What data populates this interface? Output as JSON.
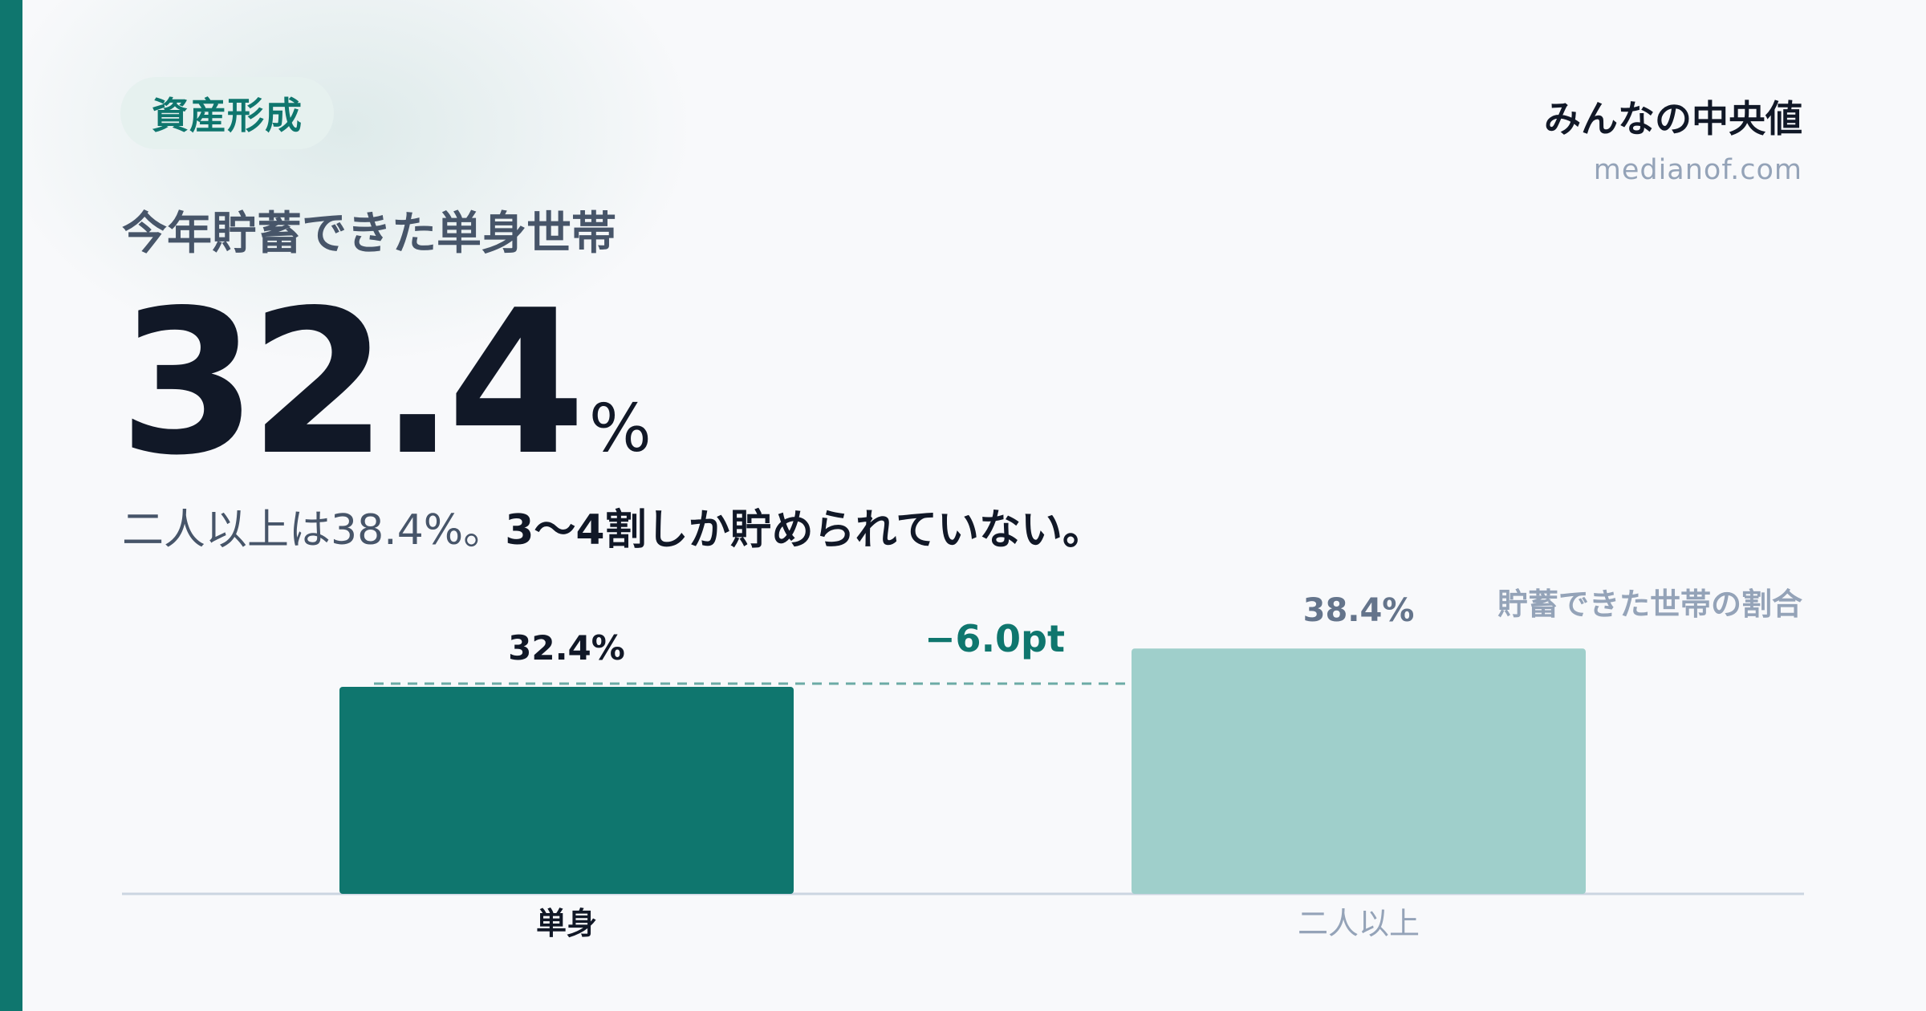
{
  "tag": "資産形成",
  "brand": {
    "name": "みんなの中央値",
    "url": "medianof.com"
  },
  "subtitle": "今年貯蓄できた単身世帯",
  "headline": {
    "value": "32.4",
    "unit": "%"
  },
  "sentence": {
    "lead": "二人以上は38.4%。",
    "emphasis": "3〜4割しか貯められていない。"
  },
  "colors": {
    "accent": "#0f766e",
    "secondary": "#9fcfcb",
    "text_dark": "#111827",
    "text_muted": "#475569",
    "text_light": "#94a3b8"
  },
  "chart_data": {
    "type": "bar",
    "legend": "貯蓄できた世帯の割合",
    "categories": [
      "単身",
      "二人以上"
    ],
    "values": [
      32.4,
      38.4
    ],
    "value_labels": [
      "32.4%",
      "38.4%"
    ],
    "difference_label": "−6.0pt",
    "reference_line": 32.4,
    "grid": false
  }
}
